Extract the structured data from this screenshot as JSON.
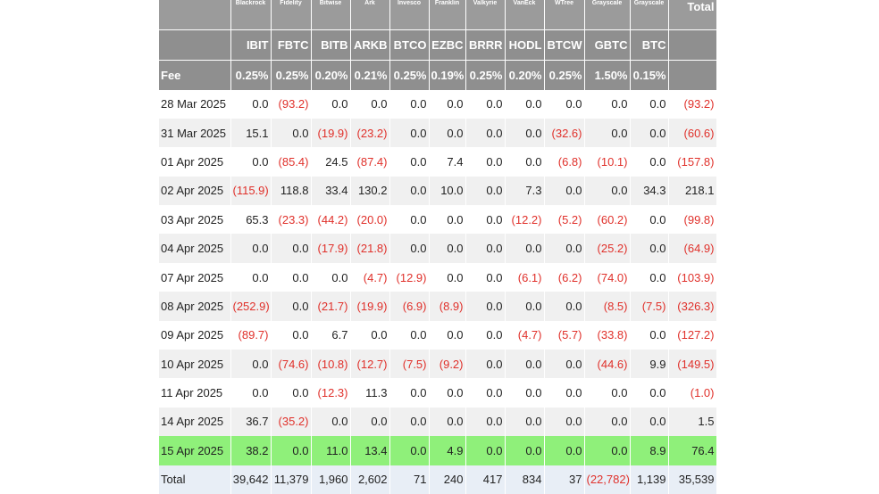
{
  "table": {
    "issuers": [
      "Blackrock",
      "Fidelity",
      "Bitwise",
      "Ark",
      "Invesco",
      "Franklin",
      "Valkyrie",
      "VanEck",
      "WTree",
      "Grayscale",
      "Grayscale"
    ],
    "total_label": "Total",
    "tickers": [
      "IBIT",
      "FBTC",
      "BITB",
      "ARKB",
      "BTCO",
      "EZBC",
      "BRRR",
      "HODL",
      "BTCW",
      "GBTC",
      "BTC"
    ],
    "fee_label": "Fee",
    "fees": [
      "0.25%",
      "0.25%",
      "0.20%",
      "0.21%",
      "0.25%",
      "0.19%",
      "0.25%",
      "0.20%",
      "0.25%",
      "1.50%",
      "0.15%"
    ],
    "rows": [
      {
        "date": "28 Mar 2025",
        "values": [
          "0.0",
          "(93.2)",
          "0.0",
          "0.0",
          "0.0",
          "0.0",
          "0.0",
          "0.0",
          "0.0",
          "0.0",
          "0.0"
        ],
        "total": "(93.2)"
      },
      {
        "date": "31 Mar 2025",
        "values": [
          "15.1",
          "0.0",
          "(19.9)",
          "(23.2)",
          "0.0",
          "0.0",
          "0.0",
          "0.0",
          "(32.6)",
          "0.0",
          "0.0"
        ],
        "total": "(60.6)"
      },
      {
        "date": "01 Apr 2025",
        "values": [
          "0.0",
          "(85.4)",
          "24.5",
          "(87.4)",
          "0.0",
          "7.4",
          "0.0",
          "0.0",
          "(6.8)",
          "(10.1)",
          "0.0"
        ],
        "total": "(157.8)"
      },
      {
        "date": "02 Apr 2025",
        "values": [
          "(115.9)",
          "118.8",
          "33.4",
          "130.2",
          "0.0",
          "10.0",
          "0.0",
          "7.3",
          "0.0",
          "0.0",
          "34.3"
        ],
        "total": "218.1"
      },
      {
        "date": "03 Apr 2025",
        "values": [
          "65.3",
          "(23.3)",
          "(44.2)",
          "(20.0)",
          "0.0",
          "0.0",
          "0.0",
          "(12.2)",
          "(5.2)",
          "(60.2)",
          "0.0"
        ],
        "total": "(99.8)"
      },
      {
        "date": "04 Apr 2025",
        "values": [
          "0.0",
          "0.0",
          "(17.9)",
          "(21.8)",
          "0.0",
          "0.0",
          "0.0",
          "0.0",
          "0.0",
          "(25.2)",
          "0.0"
        ],
        "total": "(64.9)"
      },
      {
        "date": "07 Apr 2025",
        "values": [
          "0.0",
          "0.0",
          "0.0",
          "(4.7)",
          "(12.9)",
          "0.0",
          "0.0",
          "(6.1)",
          "(6.2)",
          "(74.0)",
          "0.0"
        ],
        "total": "(103.9)"
      },
      {
        "date": "08 Apr 2025",
        "values": [
          "(252.9)",
          "0.0",
          "(21.7)",
          "(19.9)",
          "(6.9)",
          "(8.9)",
          "0.0",
          "0.0",
          "0.0",
          "(8.5)",
          "(7.5)"
        ],
        "total": "(326.3)"
      },
      {
        "date": "09 Apr 2025",
        "values": [
          "(89.7)",
          "0.0",
          "6.7",
          "0.0",
          "0.0",
          "0.0",
          "0.0",
          "(4.7)",
          "(5.7)",
          "(33.8)",
          "0.0"
        ],
        "total": "(127.2)"
      },
      {
        "date": "10 Apr 2025",
        "values": [
          "0.0",
          "(74.6)",
          "(10.8)",
          "(12.7)",
          "(7.5)",
          "(9.2)",
          "0.0",
          "0.0",
          "0.0",
          "(44.6)",
          "9.9"
        ],
        "total": "(149.5)"
      },
      {
        "date": "11 Apr 2025",
        "values": [
          "0.0",
          "0.0",
          "(12.3)",
          "11.3",
          "0.0",
          "0.0",
          "0.0",
          "0.0",
          "0.0",
          "0.0",
          "0.0"
        ],
        "total": "(1.0)"
      },
      {
        "date": "14 Apr 2025",
        "values": [
          "36.7",
          "(35.2)",
          "0.0",
          "0.0",
          "0.0",
          "0.0",
          "0.0",
          "0.0",
          "0.0",
          "0.0",
          "0.0"
        ],
        "total": "1.5"
      },
      {
        "date": "15 Apr 2025",
        "values": [
          "38.2",
          "0.0",
          "11.0",
          "13.4",
          "0.0",
          "4.9",
          "0.0",
          "0.0",
          "0.0",
          "0.0",
          "8.9"
        ],
        "total": "76.4",
        "highlight": true
      }
    ],
    "totals_row": {
      "label": "Total",
      "values": [
        "39,642",
        "11,379",
        "1,960",
        "2,602",
        "71",
        "240",
        "417",
        "834",
        "37",
        "(22,782)",
        "1,139"
      ],
      "total": "35,539"
    }
  }
}
